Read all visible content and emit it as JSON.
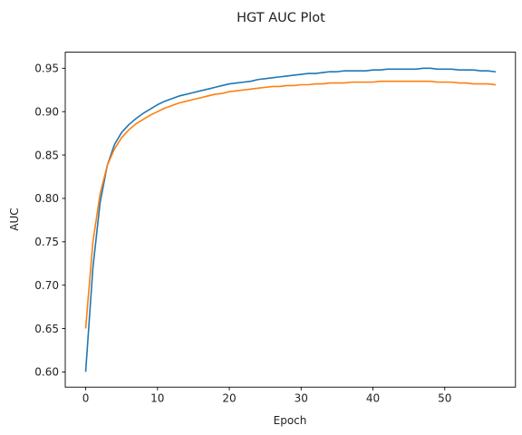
{
  "chart_data": {
    "type": "line",
    "title": "HGT AUC Plot",
    "xlabel": "Epoch",
    "ylabel": "AUC",
    "xlim": [
      -2.85,
      59.85
    ],
    "ylim": [
      0.5825,
      0.9685
    ],
    "xticks": [
      0,
      10,
      20,
      30,
      40,
      50
    ],
    "xtick_labels": [
      "0",
      "10",
      "20",
      "30",
      "40",
      "50"
    ],
    "yticks": [
      0.6,
      0.65,
      0.7,
      0.75,
      0.8,
      0.85,
      0.9,
      0.95
    ],
    "ytick_labels": [
      "0.60",
      "0.65",
      "0.70",
      "0.75",
      "0.80",
      "0.85",
      "0.90",
      "0.95"
    ],
    "grid": false,
    "legend": "none",
    "series": [
      {
        "color": "#1f77b4",
        "x": [
          0,
          1,
          2,
          3,
          4,
          5,
          6,
          7,
          8,
          9,
          10,
          11,
          12,
          13,
          14,
          15,
          16,
          17,
          18,
          19,
          20,
          21,
          22,
          23,
          24,
          25,
          26,
          27,
          28,
          29,
          30,
          31,
          32,
          33,
          34,
          35,
          36,
          37,
          38,
          39,
          40,
          41,
          42,
          43,
          44,
          45,
          46,
          47,
          48,
          49,
          50,
          51,
          52,
          53,
          54,
          55,
          56,
          57
        ],
        "values": [
          0.601,
          0.72,
          0.795,
          0.838,
          0.862,
          0.876,
          0.885,
          0.892,
          0.898,
          0.903,
          0.908,
          0.912,
          0.915,
          0.918,
          0.92,
          0.922,
          0.924,
          0.926,
          0.928,
          0.93,
          0.932,
          0.933,
          0.934,
          0.935,
          0.937,
          0.938,
          0.939,
          0.94,
          0.941,
          0.942,
          0.943,
          0.944,
          0.944,
          0.945,
          0.946,
          0.946,
          0.947,
          0.947,
          0.947,
          0.947,
          0.948,
          0.948,
          0.949,
          0.949,
          0.949,
          0.949,
          0.949,
          0.95,
          0.95,
          0.949,
          0.949,
          0.949,
          0.948,
          0.948,
          0.948,
          0.947,
          0.947,
          0.946
        ]
      },
      {
        "color": "#ff7f0e",
        "x": [
          0,
          1,
          2,
          3,
          4,
          5,
          6,
          7,
          8,
          9,
          10,
          11,
          12,
          13,
          14,
          15,
          16,
          17,
          18,
          19,
          20,
          21,
          22,
          23,
          24,
          25,
          26,
          27,
          28,
          29,
          30,
          31,
          32,
          33,
          34,
          35,
          36,
          37,
          38,
          39,
          40,
          41,
          42,
          43,
          44,
          45,
          46,
          47,
          48,
          49,
          50,
          51,
          52,
          53,
          54,
          55,
          56,
          57
        ],
        "values": [
          0.651,
          0.75,
          0.805,
          0.838,
          0.857,
          0.87,
          0.879,
          0.886,
          0.891,
          0.896,
          0.9,
          0.904,
          0.907,
          0.91,
          0.912,
          0.914,
          0.916,
          0.918,
          0.92,
          0.921,
          0.923,
          0.924,
          0.925,
          0.926,
          0.927,
          0.928,
          0.929,
          0.929,
          0.93,
          0.93,
          0.931,
          0.931,
          0.932,
          0.932,
          0.933,
          0.933,
          0.933,
          0.934,
          0.934,
          0.934,
          0.934,
          0.935,
          0.935,
          0.935,
          0.935,
          0.935,
          0.935,
          0.935,
          0.935,
          0.934,
          0.934,
          0.934,
          0.933,
          0.933,
          0.932,
          0.932,
          0.932,
          0.931
        ]
      }
    ]
  }
}
